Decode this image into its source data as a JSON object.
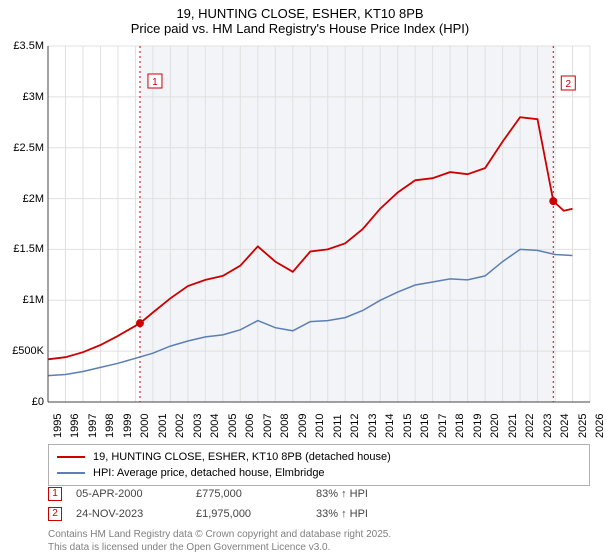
{
  "title": {
    "line1": "19, HUNTING CLOSE, ESHER, KT10 8PB",
    "line2": "Price paid vs. HM Land Registry's House Price Index (HPI)",
    "fontsize": 13,
    "color": "#000000"
  },
  "chart": {
    "type": "line",
    "background_color": "#ffffff",
    "plot_background": "#ffffff",
    "shaded_region_color": "#f2f4f8",
    "shaded_region_xstart": 2000.26,
    "shaded_region_xend": 2023.9,
    "grid_color": "#e0e0e0",
    "axis_color": "#444444",
    "xlim": [
      1995,
      2026
    ],
    "ylim": [
      0,
      3500000
    ],
    "ytick_step": 500000,
    "yticks": [
      {
        "v": 0,
        "label": "£0"
      },
      {
        "v": 500000,
        "label": "£500K"
      },
      {
        "v": 1000000,
        "label": "£1M"
      },
      {
        "v": 1500000,
        "label": "£1.5M"
      },
      {
        "v": 2000000,
        "label": "£2M"
      },
      {
        "v": 2500000,
        "label": "£2.5M"
      },
      {
        "v": 3000000,
        "label": "£3M"
      },
      {
        "v": 3500000,
        "label": "£3.5M"
      }
    ],
    "xticks": [
      1995,
      1996,
      1997,
      1998,
      1999,
      2000,
      2001,
      2002,
      2003,
      2004,
      2005,
      2006,
      2007,
      2008,
      2009,
      2010,
      2011,
      2012,
      2013,
      2014,
      2015,
      2016,
      2017,
      2018,
      2019,
      2020,
      2021,
      2022,
      2023,
      2024,
      2025,
      2026
    ],
    "marker_vlines_color": "#cc0000",
    "marker_vlines_dash": "2,3",
    "series": [
      {
        "name": "property",
        "label": "19, HUNTING CLOSE, ESHER, KT10 8PB (detached house)",
        "color": "#cc0000",
        "line_width": 1.8,
        "data": [
          [
            1995,
            420000
          ],
          [
            1996,
            440000
          ],
          [
            1997,
            490000
          ],
          [
            1998,
            560000
          ],
          [
            1999,
            650000
          ],
          [
            2000.26,
            775000
          ],
          [
            2001,
            880000
          ],
          [
            2002,
            1020000
          ],
          [
            2003,
            1140000
          ],
          [
            2004,
            1200000
          ],
          [
            2005,
            1240000
          ],
          [
            2006,
            1340000
          ],
          [
            2007,
            1530000
          ],
          [
            2008,
            1380000
          ],
          [
            2009,
            1280000
          ],
          [
            2010,
            1480000
          ],
          [
            2011,
            1500000
          ],
          [
            2012,
            1560000
          ],
          [
            2013,
            1700000
          ],
          [
            2014,
            1900000
          ],
          [
            2015,
            2060000
          ],
          [
            2016,
            2180000
          ],
          [
            2017,
            2200000
          ],
          [
            2018,
            2260000
          ],
          [
            2019,
            2240000
          ],
          [
            2020,
            2300000
          ],
          [
            2021,
            2560000
          ],
          [
            2022,
            2800000
          ],
          [
            2023,
            2780000
          ],
          [
            2023.9,
            1975000
          ],
          [
            2024.5,
            1880000
          ],
          [
            2025,
            1900000
          ]
        ]
      },
      {
        "name": "hpi",
        "label": "HPI: Average price, detached house, Elmbridge",
        "color": "#5b7fb5",
        "line_width": 1.5,
        "data": [
          [
            1995,
            260000
          ],
          [
            1996,
            270000
          ],
          [
            1997,
            300000
          ],
          [
            1998,
            340000
          ],
          [
            1999,
            380000
          ],
          [
            2000,
            430000
          ],
          [
            2001,
            480000
          ],
          [
            2002,
            550000
          ],
          [
            2003,
            600000
          ],
          [
            2004,
            640000
          ],
          [
            2005,
            660000
          ],
          [
            2006,
            710000
          ],
          [
            2007,
            800000
          ],
          [
            2008,
            730000
          ],
          [
            2009,
            700000
          ],
          [
            2010,
            790000
          ],
          [
            2011,
            800000
          ],
          [
            2012,
            830000
          ],
          [
            2013,
            900000
          ],
          [
            2014,
            1000000
          ],
          [
            2015,
            1080000
          ],
          [
            2016,
            1150000
          ],
          [
            2017,
            1180000
          ],
          [
            2018,
            1210000
          ],
          [
            2019,
            1200000
          ],
          [
            2020,
            1240000
          ],
          [
            2021,
            1380000
          ],
          [
            2022,
            1500000
          ],
          [
            2023,
            1490000
          ],
          [
            2024,
            1450000
          ],
          [
            2025,
            1440000
          ]
        ]
      }
    ],
    "markers": [
      {
        "num": "1",
        "x": 2000.26,
        "y": 775000,
        "dot_color": "#cc0000",
        "box_color": "#cc0000"
      },
      {
        "num": "2",
        "x": 2023.9,
        "y": 1975000,
        "dot_color": "#cc0000",
        "box_color": "#cc0000"
      }
    ]
  },
  "legend": {
    "border_color": "#b0b0b0",
    "fontsize": 11,
    "items": [
      {
        "color": "#cc0000",
        "label": "19, HUNTING CLOSE, ESHER, KT10 8PB (detached house)"
      },
      {
        "color": "#5b7fb5",
        "label": "HPI: Average price, detached house, Elmbridge"
      }
    ]
  },
  "data_points": {
    "fontsize": 11,
    "rows": [
      {
        "num": "1",
        "box_color": "#cc0000",
        "date": "05-APR-2000",
        "price": "£775,000",
        "delta": "83% ↑ HPI"
      },
      {
        "num": "2",
        "box_color": "#cc0000",
        "date": "24-NOV-2023",
        "price": "£1,975,000",
        "delta": "33% ↑ HPI"
      }
    ]
  },
  "footer": {
    "line1": "Contains HM Land Registry data © Crown copyright and database right 2025.",
    "line2": "This data is licensed under the Open Government Licence v3.0.",
    "color": "#808080",
    "fontsize": 10
  }
}
